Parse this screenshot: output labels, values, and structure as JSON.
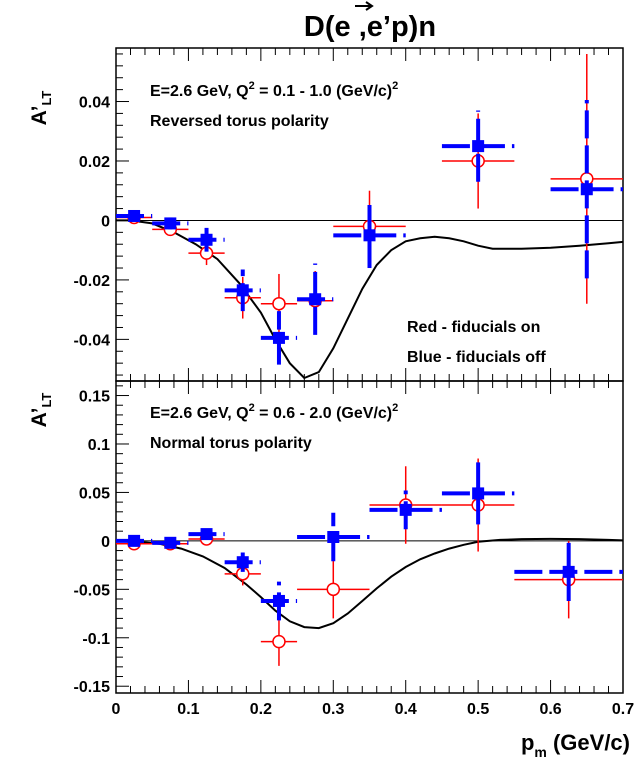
{
  "figure": {
    "title_main": "D(",
    "title_e": "e",
    "title_rest": " ,e’p)n",
    "x_axis_label": "p",
    "x_axis_sub": "m",
    "x_axis_unit": " (GeV/c)"
  },
  "legend": {
    "red": "Red - fiducials on",
    "blue": "Blue - fiducials off"
  },
  "colors": {
    "red": "#ff0000",
    "blue": "#0000ff",
    "curve": "#000000"
  },
  "chart_data": [
    {
      "type": "scatter",
      "ylabel_main": "A’",
      "ylabel_sub": "LT",
      "kin_prefix": "E=2.6 GeV, Q",
      "kin_sup": "2",
      "kin_mid": " = 0.1 - 1.0 (GeV/c)",
      "kin_sup2": "2",
      "polarity": "Reversed torus polarity",
      "xlim": [
        0,
        0.7
      ],
      "ylim": [
        -0.054,
        0.058
      ],
      "yticks": [
        {
          "v": 0.04,
          "label": "0.04"
        },
        {
          "v": 0.02,
          "label": "0.02"
        },
        {
          "v": 0,
          "label": "0"
        },
        {
          "v": -0.02,
          "label": "-0.02"
        },
        {
          "v": -0.04,
          "label": "-0.04"
        }
      ],
      "series": [
        {
          "name": "Red - fiducials on",
          "marker": "open-circle",
          "points": [
            {
              "x": 0.025,
              "y": 0.001,
              "xerr": 0.025,
              "yerr": 0.002
            },
            {
              "x": 0.075,
              "y": -0.003,
              "xerr": 0.025,
              "yerr": 0.002
            },
            {
              "x": 0.125,
              "y": -0.011,
              "xerr": 0.025,
              "yerr": 0.004
            },
            {
              "x": 0.175,
              "y": -0.026,
              "xerr": 0.025,
              "yerr": 0.007
            },
            {
              "x": 0.225,
              "y": -0.028,
              "xerr": 0.025,
              "yerr": 0.01
            },
            {
              "x": 0.275,
              "y": -0.027,
              "xerr": 0.025,
              "yerr": 0.01
            },
            {
              "x": 0.35,
              "y": -0.002,
              "xerr": 0.05,
              "yerr": 0.012
            },
            {
              "x": 0.5,
              "y": 0.02,
              "xerr": 0.05,
              "yerr": 0.016
            },
            {
              "x": 0.65,
              "y": 0.014,
              "xerr": 0.05,
              "yerr": 0.042
            }
          ]
        },
        {
          "name": "Blue - fiducials off",
          "marker": "filled-square",
          "points": [
            {
              "x": 0.025,
              "y": 0.0015,
              "xerr": 0.025,
              "yerr": 0.0015
            },
            {
              "x": 0.075,
              "y": -0.001,
              "xerr": 0.025,
              "yerr": 0.002
            },
            {
              "x": 0.125,
              "y": -0.0065,
              "xerr": 0.025,
              "yerr": 0.004
            },
            {
              "x": 0.175,
              "y": -0.0235,
              "xerr": 0.025,
              "yerr": 0.007
            },
            {
              "x": 0.225,
              "y": -0.0395,
              "xerr": 0.025,
              "yerr": 0.009
            },
            {
              "x": 0.275,
              "y": -0.0265,
              "xerr": 0.025,
              "yerr": 0.012
            },
            {
              "x": 0.35,
              "y": -0.005,
              "xerr": 0.05,
              "yerr": 0.011
            },
            {
              "x": 0.5,
              "y": 0.025,
              "xerr": 0.05,
              "yerr": 0.012
            },
            {
              "x": 0.65,
              "y": 0.0105,
              "xerr": 0.05,
              "yerr": 0.03
            }
          ]
        }
      ],
      "curve": [
        [
          0.0,
          0.0
        ],
        [
          0.02,
          0.0
        ],
        [
          0.05,
          -0.001
        ],
        [
          0.08,
          -0.004
        ],
        [
          0.11,
          -0.008
        ],
        [
          0.14,
          -0.013
        ],
        [
          0.17,
          -0.021
        ],
        [
          0.2,
          -0.031
        ],
        [
          0.22,
          -0.04
        ],
        [
          0.24,
          -0.048
        ],
        [
          0.26,
          -0.053
        ],
        [
          0.28,
          -0.051
        ],
        [
          0.3,
          -0.043
        ],
        [
          0.32,
          -0.033
        ],
        [
          0.34,
          -0.023
        ],
        [
          0.36,
          -0.015
        ],
        [
          0.38,
          -0.01
        ],
        [
          0.4,
          -0.007
        ],
        [
          0.42,
          -0.006
        ],
        [
          0.44,
          -0.0055
        ],
        [
          0.46,
          -0.006
        ],
        [
          0.48,
          -0.007
        ],
        [
          0.5,
          -0.0085
        ],
        [
          0.52,
          -0.0095
        ],
        [
          0.54,
          -0.0095
        ],
        [
          0.56,
          -0.0095
        ],
        [
          0.6,
          -0.0092
        ],
        [
          0.64,
          -0.0085
        ],
        [
          0.68,
          -0.0077
        ],
        [
          0.7,
          -0.0072
        ]
      ]
    },
    {
      "type": "scatter",
      "ylabel_main": "A’",
      "ylabel_sub": "LT",
      "kin_prefix": "E=2.6 GeV, Q",
      "kin_sup": "2",
      "kin_mid": " = 0.6 - 2.0 (GeV/c)",
      "kin_sup2": "2",
      "polarity": "Normal torus polarity",
      "xlim": [
        0,
        0.7
      ],
      "ylim": [
        -0.157,
        0.165
      ],
      "yticks": [
        {
          "v": 0.15,
          "label": "0.15"
        },
        {
          "v": 0.1,
          "label": "0.1"
        },
        {
          "v": 0.05,
          "label": "0.05"
        },
        {
          "v": 0,
          "label": "0"
        },
        {
          "v": -0.05,
          "label": "-0.05"
        },
        {
          "v": -0.1,
          "label": "-0.1"
        },
        {
          "v": -0.15,
          "label": "-0.15"
        }
      ],
      "xticks": [
        {
          "v": 0,
          "label": "0"
        },
        {
          "v": 0.1,
          "label": "0.1"
        },
        {
          "v": 0.2,
          "label": "0.2"
        },
        {
          "v": 0.3,
          "label": "0.3"
        },
        {
          "v": 0.4,
          "label": "0.4"
        },
        {
          "v": 0.5,
          "label": "0.5"
        },
        {
          "v": 0.6,
          "label": "0.6"
        },
        {
          "v": 0.7,
          "label": "0.7"
        }
      ],
      "series": [
        {
          "name": "Red - fiducials on",
          "marker": "open-circle",
          "points": [
            {
              "x": 0.025,
              "y": -0.003,
              "xerr": 0.025,
              "yerr": 0.004
            },
            {
              "x": 0.075,
              "y": -0.003,
              "xerr": 0.025,
              "yerr": 0.004
            },
            {
              "x": 0.125,
              "y": 0.002,
              "xerr": 0.025,
              "yerr": 0.006
            },
            {
              "x": 0.175,
              "y": -0.034,
              "xerr": 0.025,
              "yerr": 0.012
            },
            {
              "x": 0.225,
              "y": -0.104,
              "xerr": 0.025,
              "yerr": 0.025
            },
            {
              "x": 0.3,
              "y": -0.05,
              "xerr": 0.05,
              "yerr": 0.03
            },
            {
              "x": 0.4,
              "y": 0.037,
              "xerr": 0.05,
              "yerr": 0.04
            },
            {
              "x": 0.5,
              "y": 0.037,
              "xerr": 0.05,
              "yerr": 0.048
            },
            {
              "x": 0.625,
              "y": -0.04,
              "xerr": 0.075,
              "yerr": 0.04
            }
          ]
        },
        {
          "name": "Blue - fiducials off",
          "marker": "filled-square",
          "points": [
            {
              "x": 0.025,
              "y": 0.0,
              "xerr": 0.025,
              "yerr": 0.004
            },
            {
              "x": 0.075,
              "y": -0.002,
              "xerr": 0.025,
              "yerr": 0.004
            },
            {
              "x": 0.125,
              "y": 0.007,
              "xerr": 0.025,
              "yerr": 0.005
            },
            {
              "x": 0.175,
              "y": -0.022,
              "xerr": 0.025,
              "yerr": 0.01
            },
            {
              "x": 0.225,
              "y": -0.062,
              "xerr": 0.025,
              "yerr": 0.02
            },
            {
              "x": 0.3,
              "y": 0.004,
              "xerr": 0.05,
              "yerr": 0.025
            },
            {
              "x": 0.4,
              "y": 0.032,
              "xerr": 0.05,
              "yerr": 0.02
            },
            {
              "x": 0.5,
              "y": 0.049,
              "xerr": 0.05,
              "yerr": 0.032
            },
            {
              "x": 0.625,
              "y": -0.032,
              "xerr": 0.075,
              "yerr": 0.03
            }
          ]
        }
      ],
      "curve": [
        [
          0.0,
          0.0
        ],
        [
          0.03,
          -0.001
        ],
        [
          0.06,
          -0.003
        ],
        [
          0.09,
          -0.008
        ],
        [
          0.12,
          -0.016
        ],
        [
          0.15,
          -0.028
        ],
        [
          0.18,
          -0.045
        ],
        [
          0.2,
          -0.058
        ],
        [
          0.22,
          -0.072
        ],
        [
          0.24,
          -0.083
        ],
        [
          0.26,
          -0.089
        ],
        [
          0.28,
          -0.09
        ],
        [
          0.3,
          -0.085
        ],
        [
          0.32,
          -0.075
        ],
        [
          0.34,
          -0.062
        ],
        [
          0.36,
          -0.049
        ],
        [
          0.38,
          -0.037
        ],
        [
          0.4,
          -0.027
        ],
        [
          0.42,
          -0.019
        ],
        [
          0.44,
          -0.013
        ],
        [
          0.46,
          -0.008
        ],
        [
          0.48,
          -0.004
        ],
        [
          0.5,
          -0.001
        ],
        [
          0.53,
          0.001
        ],
        [
          0.56,
          0.0018
        ],
        [
          0.6,
          0.002
        ],
        [
          0.64,
          0.0018
        ],
        [
          0.68,
          0.001
        ],
        [
          0.7,
          0.0005
        ]
      ]
    }
  ]
}
